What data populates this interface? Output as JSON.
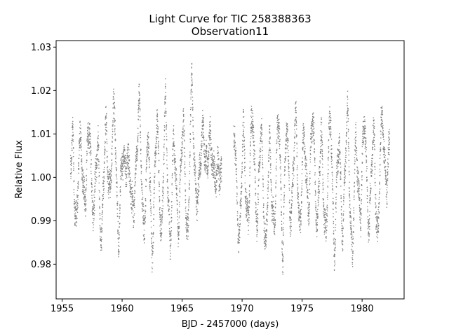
{
  "chart_data": {
    "type": "scatter",
    "title": "Light Curve for TIC 258388363",
    "subtitle": "Observation11",
    "xlabel": "BJD - 2457000 (days)",
    "ylabel": "Relative Flux",
    "xlim": [
      1954.5,
      1983.5
    ],
    "ylim": [
      0.972,
      1.0315
    ],
    "xticks": [
      1955,
      1960,
      1965,
      1970,
      1975,
      1980
    ],
    "yticks": [
      0.98,
      0.99,
      1.0,
      1.01,
      1.02,
      1.03
    ],
    "xtick_labels": [
      "1955",
      "1960",
      "1965",
      "1970",
      "1975",
      "1980"
    ],
    "ytick_labels": [
      "0.98",
      "0.99",
      "1.00",
      "1.01",
      "1.02",
      "1.03"
    ],
    "grid": false,
    "marker_color": "#808080",
    "series": [
      {
        "segments": [
          [
            1955.7,
            1968.3
          ],
          [
            1969.3,
            1982.3
          ]
        ],
        "x": [
          1955.75,
          1955.9,
          1956.2,
          1956.6,
          1957.0,
          1957.3,
          1957.7,
          1958.0,
          1958.3,
          1958.7,
          1959.0,
          1959.4,
          1959.7,
          1960.0,
          1960.4,
          1960.8,
          1961.1,
          1961.4,
          1961.8,
          1962.2,
          1962.5,
          1962.9,
          1963.3,
          1963.6,
          1964.0,
          1964.3,
          1964.7,
          1965.1,
          1965.5,
          1965.8,
          1966.1,
          1966.4,
          1966.8,
          1967.1,
          1967.5,
          1967.9,
          1968.2,
          1969.4,
          1969.8,
          1970.1,
          1970.5,
          1970.9,
          1971.3,
          1971.6,
          1972.0,
          1972.3,
          1972.7,
          1973.1,
          1973.4,
          1973.7,
          1974.1,
          1974.5,
          1974.8,
          1975.2,
          1975.6,
          1975.9,
          1976.3,
          1976.6,
          1977.0,
          1977.4,
          1977.7,
          1978.1,
          1978.4,
          1978.8,
          1979.2,
          1979.5,
          1979.9,
          1980.2,
          1980.6,
          1981.0,
          1981.3,
          1981.7,
          1982.1
        ],
        "y": [
          0.999,
          1.011,
          0.989,
          1.009,
          0.994,
          1.012,
          0.991,
          1.006,
          0.989,
          1.009,
          1.001,
          1.012,
          0.99,
          0.998,
          1.01,
          0.988,
          1.004,
          1.012,
          0.992,
          1.004,
          0.988,
          1.008,
          0.991,
          1.012,
          0.989,
          1.003,
          0.994,
          1.008,
          0.99,
          1.017,
          1.004,
          0.992,
          1.017,
          0.998,
          1.011,
          0.994,
          1.005,
          1.002,
          0.99,
          1.005,
          0.994,
          1.011,
          0.992,
          1.008,
          0.987,
          1.003,
          0.993,
          1.011,
          0.986,
          1.007,
          0.995,
          1.009,
          0.992,
          1.005,
          0.998,
          1.01,
          0.993,
          1.004,
          0.991,
          1.011,
          0.987,
          1.005,
          0.992,
          1.01,
          0.985,
          1.004,
          0.996,
          1.009,
          0.993,
          1.006,
          0.99,
          1.011,
          1.002
        ],
        "amplitude": 0.0105
      }
    ]
  }
}
